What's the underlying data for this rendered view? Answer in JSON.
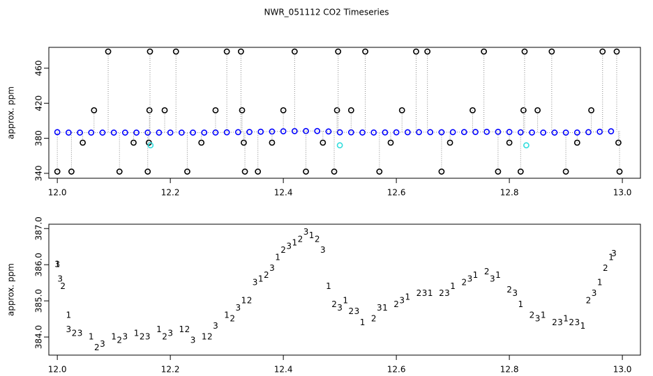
{
  "title": "NWR_051112  CO2 Timeseries",
  "chart_data": [
    {
      "type": "scatter",
      "ylabel": "approx. ppm",
      "xlim": [
        11.985,
        13.032
      ],
      "ylim": [
        334.4,
        483.8
      ],
      "xticks": [
        {
          "value": 12.0,
          "label": "12.0"
        },
        12.2,
        12.4,
        12.6,
        12.8,
        {
          "value": 13.0,
          "label": "13.0"
        }
      ],
      "yticks": [
        340,
        380,
        420,
        460
      ],
      "series": [
        {
          "color": "#0000ff",
          "connect": true,
          "x": [
            12.0,
            12.02,
            12.04,
            12.06,
            12.08,
            12.1,
            12.12,
            12.14,
            12.16,
            12.18,
            12.2,
            12.22,
            12.24,
            12.26,
            12.28,
            12.3,
            12.32,
            12.34,
            12.36,
            12.38,
            12.4,
            12.42,
            12.44,
            12.46,
            12.48,
            12.5,
            12.52,
            12.54,
            12.56,
            12.58,
            12.6,
            12.62,
            12.64,
            12.66,
            12.68,
            12.7,
            12.72,
            12.74,
            12.76,
            12.78,
            12.8,
            12.82,
            12.84,
            12.86,
            12.88,
            12.9,
            12.92,
            12.94,
            12.96,
            12.98
          ],
          "values": [
            387,
            386.5,
            386.5,
            386.5,
            386.5,
            386.5,
            386.5,
            386.5,
            386.5,
            386.5,
            386.5,
            386.5,
            386.5,
            386.5,
            386.6,
            386.8,
            387,
            387.2,
            387.5,
            387.7,
            388,
            388.2,
            388.3,
            388.3,
            387.8,
            386.8,
            386.8,
            386.6,
            386.6,
            386.7,
            386.8,
            386.9,
            387,
            387,
            386.9,
            387,
            387.1,
            387.2,
            387.4,
            387.4,
            387.2,
            386.8,
            386.6,
            386.5,
            386.5,
            386.5,
            386.6,
            387,
            387.5,
            388
          ]
        },
        {
          "color": "#000000",
          "spike": true,
          "x": [
            12.0,
            12.025,
            12.045,
            12.065,
            12.09,
            12.11,
            12.135,
            12.16,
            12.162,
            12.163,
            12.164,
            12.19,
            12.21,
            12.23,
            12.255,
            12.28,
            12.3,
            12.325,
            12.327,
            12.33,
            12.332,
            12.355,
            12.38,
            12.4,
            12.42,
            12.44,
            12.47,
            12.49,
            12.495,
            12.497,
            12.52,
            12.545,
            12.57,
            12.59,
            12.61,
            12.635,
            12.655,
            12.68,
            12.695,
            12.735,
            12.755,
            12.78,
            12.8,
            12.82,
            12.825,
            12.827,
            12.85,
            12.875,
            12.9,
            12.92,
            12.945,
            12.965,
            12.99,
            12.993,
            12.995
          ],
          "values": [
            342,
            342,
            375,
            412,
            479,
            342,
            375,
            342,
            375,
            412,
            479,
            412,
            479,
            342,
            375,
            412,
            479,
            479,
            412,
            375,
            342,
            342,
            375,
            412,
            479,
            342,
            375,
            342,
            412,
            479,
            412,
            479,
            342,
            375,
            412,
            479,
            479,
            342,
            375,
            412,
            479,
            342,
            375,
            342,
            412,
            479,
            412,
            479,
            342,
            375,
            412,
            479,
            479,
            375,
            342
          ]
        },
        {
          "color": "#33dddd",
          "x": [
            12.165,
            12.5,
            12.83
          ],
          "values": [
            372,
            372,
            372
          ]
        }
      ]
    },
    {
      "type": "scatter",
      "ylabel": "approx. ppm",
      "xlim": [
        11.985,
        13.032
      ],
      "ylim": [
        383.5,
        387.12
      ],
      "xticks": [
        {
          "value": 12.0,
          "label": "12.0"
        },
        12.2,
        12.4,
        12.6,
        12.8,
        {
          "value": 13.0,
          "label": "13.0"
        }
      ],
      "yticks": [
        {
          "value": 384,
          "label": "384.0"
        },
        {
          "value": 385,
          "label": "385.0"
        },
        {
          "value": 386,
          "label": "386.0"
        },
        {
          "value": 387,
          "label": "387.0"
        }
      ],
      "series": [
        {
          "marker": "1",
          "color": "#dd0000",
          "x": [
            12.0,
            12.02,
            12.06,
            12.1,
            12.14,
            12.18,
            12.22,
            12.26,
            12.3,
            12.33,
            12.36,
            12.39,
            12.42,
            12.45,
            12.48,
            12.51,
            12.54,
            12.58,
            12.62,
            12.66,
            12.7,
            12.74,
            12.78,
            12.82,
            12.86,
            12.9,
            12.93,
            12.96,
            12.98
          ],
          "values": [
            386.0,
            384.6,
            384.0,
            384.0,
            384.1,
            384.2,
            384.2,
            384.0,
            384.6,
            385.0,
            385.6,
            386.2,
            386.6,
            386.8,
            385.4,
            385.0,
            384.4,
            384.8,
            385.1,
            385.2,
            385.4,
            385.7,
            385.7,
            384.9,
            384.6,
            384.5,
            384.3,
            385.5,
            386.2
          ]
        },
        {
          "marker": "2",
          "color": "#00aa00",
          "x": [
            12.01,
            12.03,
            12.07,
            12.11,
            12.15,
            12.19,
            12.23,
            12.27,
            12.31,
            12.34,
            12.37,
            12.4,
            12.43,
            12.46,
            12.49,
            12.52,
            12.56,
            12.6,
            12.64,
            12.68,
            12.72,
            12.76,
            12.8,
            12.84,
            12.88,
            12.91,
            12.94,
            12.97
          ],
          "values": [
            385.4,
            384.1,
            383.7,
            383.9,
            384.0,
            384.0,
            384.2,
            384.0,
            384.5,
            385.0,
            385.7,
            386.4,
            386.7,
            386.7,
            384.9,
            384.7,
            384.5,
            384.9,
            385.2,
            385.2,
            385.5,
            385.8,
            385.3,
            384.6,
            384.4,
            384.4,
            385.0,
            385.9
          ]
        },
        {
          "marker": "3",
          "color": "#0000dd",
          "x": [
            12.0,
            12.005,
            12.02,
            12.04,
            12.08,
            12.12,
            12.16,
            12.2,
            12.24,
            12.28,
            12.32,
            12.35,
            12.38,
            12.41,
            12.44,
            12.47,
            12.5,
            12.53,
            12.57,
            12.61,
            12.65,
            12.69,
            12.73,
            12.77,
            12.81,
            12.85,
            12.89,
            12.92,
            12.95,
            12.985
          ],
          "values": [
            386.0,
            385.6,
            384.2,
            384.1,
            383.8,
            384.0,
            384.0,
            384.1,
            383.9,
            384.3,
            384.8,
            385.5,
            385.9,
            386.5,
            386.9,
            386.4,
            384.8,
            384.7,
            384.8,
            385.0,
            385.2,
            385.2,
            385.6,
            385.6,
            385.2,
            384.5,
            384.4,
            384.4,
            385.2,
            386.3
          ]
        }
      ]
    }
  ]
}
